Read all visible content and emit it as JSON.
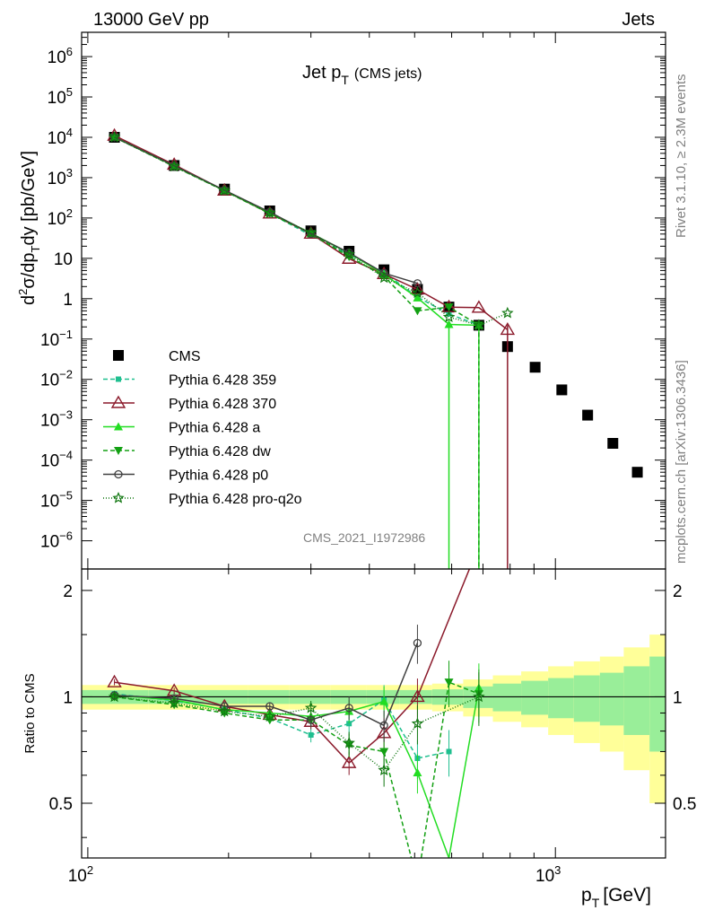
{
  "header": {
    "left": "13000 GeV pp",
    "right": "Jets"
  },
  "side_labels": {
    "rivet": "Rivet 3.1.10, ≥ 2.3M events",
    "mcplots": "mcplots.cern.ch [arXiv:1306.3436]"
  },
  "watermark": "CMS_2021_I1972986",
  "chart_data": [
    {
      "type": "scatter",
      "panel": "main",
      "title": "Jet pT (CMS jets)",
      "title_main": "Jet p",
      "title_sub": "T",
      "title_note": "(CMS jets)",
      "ylabel": "d²σ/dp_T dy [pb/GeV]",
      "xlabel": "p_T [GeV]",
      "x_scale": "log",
      "y_scale": "log",
      "xlim": [
        97,
        1720
      ],
      "ylim": [
        2e-07,
        4000000.0
      ],
      "x_ticks": [
        {
          "value": 100,
          "base": "10",
          "exp": "2"
        },
        {
          "value": 1000,
          "base": "10",
          "exp": "3"
        }
      ],
      "y_ticks": [
        {
          "value": 1e-06,
          "base": "10",
          "exp": "−6"
        },
        {
          "value": 1e-05,
          "base": "10",
          "exp": "−5"
        },
        {
          "value": 0.0001,
          "base": "10",
          "exp": "−4"
        },
        {
          "value": 0.001,
          "base": "10",
          "exp": "−3"
        },
        {
          "value": 0.01,
          "base": "10",
          "exp": "−2"
        },
        {
          "value": 0.1,
          "base": "10",
          "exp": "−1"
        },
        {
          "value": 1,
          "base": "1",
          "exp": ""
        },
        {
          "value": 10,
          "base": "10",
          "exp": ""
        },
        {
          "value": 100,
          "base": "10",
          "exp": "2"
        },
        {
          "value": 1000,
          "base": "10",
          "exp": "3"
        },
        {
          "value": 10000,
          "base": "10",
          "exp": "4"
        },
        {
          "value": 100000,
          "base": "10",
          "exp": "5"
        },
        {
          "value": 1000000,
          "base": "10",
          "exp": "6"
        }
      ],
      "legend_position": "middle-left",
      "data": {
        "name": "CMS",
        "color": "#000000",
        "x": [
          114,
          153,
          196,
          245,
          300,
          362,
          430,
          507,
          592,
          686,
          790,
          905,
          1032,
          1172,
          1327,
          1497
        ],
        "y": [
          10000,
          2000,
          520,
          150,
          48,
          15,
          5.2,
          1.7,
          0.62,
          0.22,
          0.065,
          0.02,
          0.0055,
          0.0013,
          0.00026,
          5e-05
        ]
      },
      "series": [
        {
          "name": "Pythia 6.428 359",
          "color": "#1fbf8f",
          "dash": "5,3",
          "marker": "square-small",
          "x": [
            114,
            153,
            196,
            245,
            300,
            362,
            430,
            507,
            592,
            686
          ],
          "y": [
            10200,
            1950,
            480,
            130,
            37,
            12.5,
            4.5,
            1.1,
            0.42,
            0.22
          ]
        },
        {
          "name": "Pythia 6.428 370",
          "color": "#8b1a2b",
          "dash": "",
          "marker": "triangle-open",
          "x": [
            114,
            153,
            196,
            245,
            300,
            362,
            430,
            507,
            592,
            686,
            790
          ],
          "y": [
            11000,
            2100,
            480,
            130,
            41,
            9.8,
            4.1,
            1.7,
            0.62,
            0.6,
            0.17
          ]
        },
        {
          "name": "Pythia 6.428 a",
          "color": "#22dd22",
          "dash": "",
          "marker": "triangle",
          "x": [
            114,
            153,
            196,
            245,
            300,
            362,
            430,
            507,
            592,
            686
          ],
          "y": [
            10100,
            1950,
            480,
            135,
            42,
            13.5,
            4.0,
            1.05,
            0.23,
            0.22
          ]
        },
        {
          "name": "Pythia 6.428 dw",
          "color": "#13a013",
          "dash": "5,3",
          "marker": "triangle-down",
          "x": [
            114,
            153,
            196,
            245,
            300,
            362,
            430,
            507,
            592,
            686
          ],
          "y": [
            10000,
            1880,
            470,
            128,
            41,
            11,
            3.6,
            0.5,
            0.62,
            0.22
          ]
        },
        {
          "name": "Pythia 6.428 p0",
          "color": "#404040",
          "dash": "",
          "marker": "circle-open",
          "x": [
            114,
            153,
            196,
            245,
            300,
            362,
            430,
            507
          ],
          "y": [
            10100,
            1970,
            490,
            140,
            41,
            13.8,
            4.3,
            2.4
          ]
        },
        {
          "name": "Pythia 6.428 pro-q2o",
          "color": "#117711",
          "dash": "1,2",
          "marker": "star-open",
          "x": [
            114,
            153,
            196,
            245,
            300,
            362,
            430,
            507,
            592,
            686,
            790
          ],
          "y": [
            10000,
            1900,
            475,
            132,
            43,
            12.5,
            3.3,
            1.4,
            0.35,
            0.22,
            0.44
          ]
        }
      ]
    },
    {
      "type": "line",
      "panel": "ratio",
      "ylabel": "Ratio to CMS",
      "xlabel": "p_T [GeV]",
      "x_scale": "log",
      "ylim": [
        0.35,
        2.3
      ],
      "y_ticks": [
        0.5,
        1,
        2
      ],
      "y_tick_labels": [
        "0.5",
        "1",
        "2"
      ],
      "band_edges": [
        97,
        135,
        173,
        220,
        270,
        330,
        395,
        465,
        545,
        635,
        735,
        845,
        965,
        1095,
        1245,
        1400,
        1590,
        1720
      ],
      "band_inner": [
        0.045,
        0.045,
        0.045,
        0.045,
        0.045,
        0.045,
        0.045,
        0.045,
        0.05,
        0.07,
        0.09,
        0.11,
        0.13,
        0.15,
        0.17,
        0.22,
        0.3
      ],
      "band_outer": [
        0.08,
        0.08,
        0.08,
        0.08,
        0.08,
        0.08,
        0.08,
        0.08,
        0.09,
        0.12,
        0.15,
        0.18,
        0.22,
        0.26,
        0.3,
        0.38,
        0.5
      ],
      "series": [
        {
          "name": "Pythia 6.428 359",
          "x": [
            114,
            153,
            196,
            245,
            300,
            362,
            430,
            507,
            592
          ],
          "y": [
            1.02,
            0.975,
            0.92,
            0.87,
            0.78,
            0.84,
            0.98,
            0.67,
            0.7
          ]
        },
        {
          "name": "Pythia 6.428 370",
          "x": [
            114,
            153,
            196,
            245,
            300,
            362,
            430,
            507,
            680
          ],
          "y": [
            1.1,
            1.04,
            0.94,
            0.89,
            0.85,
            0.65,
            0.79,
            1.0,
            2.6
          ]
        },
        {
          "name": "Pythia 6.428 a",
          "x": [
            114,
            153,
            196,
            245,
            300,
            362,
            430,
            507,
            592,
            686
          ],
          "y": [
            1.01,
            0.98,
            0.92,
            0.9,
            0.88,
            0.91,
            0.97,
            0.61,
            0.35,
            1.06
          ]
        },
        {
          "name": "Pythia 6.428 dw",
          "x": [
            114,
            153,
            196,
            245,
            300,
            362,
            430,
            507,
            592,
            686
          ],
          "y": [
            1.0,
            0.95,
            0.9,
            0.86,
            0.86,
            0.73,
            0.7,
            0.3,
            1.1,
            1.02
          ]
        },
        {
          "name": "Pythia 6.428 p0",
          "x": [
            114,
            153,
            196,
            245,
            300,
            362,
            430,
            507
          ],
          "y": [
            1.01,
            0.99,
            0.94,
            0.94,
            0.86,
            0.93,
            0.83,
            1.42
          ]
        },
        {
          "name": "Pythia 6.428 pro-q2o",
          "x": [
            114,
            153,
            196,
            245,
            300,
            362,
            430,
            507,
            686
          ],
          "y": [
            1.0,
            0.96,
            0.91,
            0.88,
            0.93,
            0.74,
            0.62,
            0.84,
            1.0
          ]
        }
      ]
    }
  ]
}
